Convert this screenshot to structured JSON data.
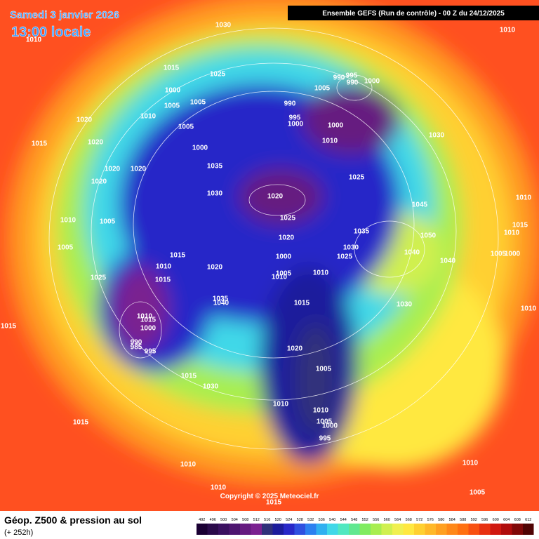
{
  "header": {
    "date": "Samedi 3 janvier 2026",
    "time": "13:00 locale",
    "run": "Ensemble GEFS  (Run de contrôle)  - 00 Z du 24/12/2025"
  },
  "footer": {
    "title": "Géop. Z500 & pression au sol",
    "lead": "(+ 252h)",
    "copyright": "Copyright © 2025 Meteociel.fr"
  },
  "colorbar": {
    "ticks": [
      492,
      496,
      500,
      504,
      508,
      512,
      516,
      520,
      524,
      528,
      532,
      536,
      540,
      544,
      548,
      552,
      556,
      560,
      564,
      568,
      572,
      576,
      580,
      584,
      588,
      592,
      596,
      600,
      604,
      608,
      612
    ],
    "colors": [
      "#1a0033",
      "#2a0a4a",
      "#3a1060",
      "#4d1570",
      "#661a80",
      "#7a2090",
      "#30307a",
      "#1c1c9c",
      "#2828c8",
      "#2f50e0",
      "#2c80f0",
      "#30b0f0",
      "#40d8e8",
      "#50e8c0",
      "#60e890",
      "#80ec60",
      "#a8ee50",
      "#d0f050",
      "#f0f050",
      "#ffe840",
      "#ffd030",
      "#ffb828",
      "#ffa020",
      "#ff8818",
      "#ff7010",
      "#f85010",
      "#e83010",
      "#d01810",
      "#b00c0c",
      "#800808",
      "#500404"
    ]
  },
  "isobars": [
    "1030",
    "1010",
    "1015",
    "1025",
    "1000",
    "1005",
    "1005",
    "1010",
    "1005",
    "1020",
    "1015",
    "1020",
    "1000",
    "1020",
    "1020",
    "1035",
    "1020",
    "1030",
    "1010",
    "1005",
    "1005",
    "1025",
    "1015",
    "1010",
    "1015",
    "1020",
    "1035",
    "1040",
    "1010",
    "1015",
    "1000",
    "990",
    "985",
    "995",
    "1015",
    "1015",
    "1030",
    "1015",
    "1010",
    "1010",
    "1015",
    "990",
    "995",
    "1000",
    "1005",
    "990",
    "995",
    "990",
    "1000",
    "1000",
    "1010",
    "1025",
    "1030",
    "1045",
    "1020",
    "1025",
    "1020",
    "1000",
    "1005",
    "1010",
    "1010",
    "1035",
    "1030",
    "1025",
    "1040",
    "1050",
    "1040",
    "1015",
    "1030",
    "1020",
    "1005",
    "1010",
    "1010",
    "1005",
    "1000",
    "995",
    "1010",
    "1010",
    "1015",
    "1010",
    "1005",
    "1000",
    "1010",
    "1010",
    "1005"
  ]
}
